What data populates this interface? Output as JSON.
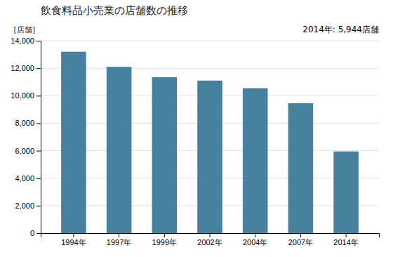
{
  "chart_data": {
    "type": "bar",
    "title": "飲食料品小売業の店舗数の推移",
    "ylabel": "[店舗]",
    "annotation": "2014年: 5,944店舗",
    "categories": [
      "1994年",
      "1997年",
      "1999年",
      "2002年",
      "2004年",
      "2007年",
      "2014年"
    ],
    "values": [
      13200,
      12100,
      11350,
      11100,
      10550,
      9450,
      5944
    ],
    "color": "#4682a0",
    "ylim": [
      0,
      14000
    ],
    "yticks": [
      0,
      {
        "value": 2000,
        "label": "2,000"
      },
      {
        "value": 4000,
        "label": "4,000"
      },
      {
        "value": 6000,
        "label": "6,000"
      },
      {
        "value": 8000,
        "label": "8,000"
      },
      {
        "value": 10000,
        "label": "10,000"
      },
      {
        "value": 12000,
        "label": "12,000"
      },
      {
        "value": 14000,
        "label": "14,000"
      }
    ],
    "grid": true
  }
}
